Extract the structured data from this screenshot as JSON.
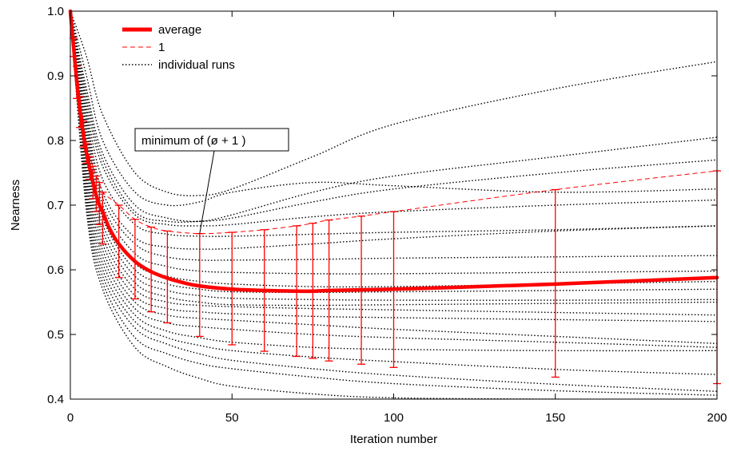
{
  "chart_data": {
    "type": "line",
    "xlabel": "Iteration number",
    "ylabel": "Nearness",
    "xlim": [
      0,
      200
    ],
    "ylim": [
      0.4,
      1.0
    ],
    "xticks": [
      0,
      50,
      100,
      150,
      200
    ],
    "yticks": [
      0.4,
      0.5,
      0.6,
      0.7,
      0.8,
      0.9,
      1.0
    ],
    "xtick_labels": [
      "0",
      "50",
      "100",
      "150",
      "200"
    ],
    "ytick_labels": [
      "0.4",
      "0.5",
      "0.6",
      "0.7",
      "0.8",
      "0.9",
      "1.0"
    ],
    "grid": false,
    "legend_position": "top-left",
    "legend": [
      {
        "label": "average",
        "style": "thick-solid",
        "color": "#ff0000"
      },
      {
        "label": "1",
        "style": "dashed",
        "color": "#ff0000"
      },
      {
        "label": "individual runs",
        "style": "dotted",
        "color": "#000000"
      }
    ],
    "annotation": {
      "text": "minimum of (ø + 1  )",
      "points_to": {
        "x": 40,
        "y": 0.656
      }
    },
    "average": {
      "color": "#ff0000",
      "x": [
        0,
        1,
        2,
        3,
        4,
        5,
        6,
        7,
        8,
        9,
        10,
        12,
        15,
        20,
        25,
        30,
        35,
        40,
        50,
        60,
        70,
        75,
        80,
        90,
        100,
        120,
        150,
        200
      ],
      "y": [
        1.0,
        0.945,
        0.89,
        0.845,
        0.81,
        0.78,
        0.757,
        0.735,
        0.715,
        0.7,
        0.69,
        0.665,
        0.64,
        0.613,
        0.597,
        0.587,
        0.58,
        0.575,
        0.57,
        0.568,
        0.567,
        0.567,
        0.568,
        0.569,
        0.57,
        0.573,
        0.578,
        0.588
      ]
    },
    "upper_bound": {
      "color": "#ff0000",
      "x": [
        0,
        1,
        2,
        3,
        4,
        5,
        6,
        7,
        8,
        9,
        10,
        15,
        20,
        25,
        30,
        40,
        50,
        60,
        70,
        75,
        80,
        90,
        100,
        150,
        200
      ],
      "y": [
        1.0,
        0.958,
        0.915,
        0.868,
        0.83,
        0.795,
        0.775,
        0.76,
        0.745,
        0.735,
        0.72,
        0.7,
        0.678,
        0.666,
        0.66,
        0.656,
        0.658,
        0.662,
        0.668,
        0.672,
        0.677,
        0.683,
        0.69,
        0.724,
        0.753
      ]
    },
    "error_bars": {
      "color": "#ff0000",
      "x": [
        1,
        2,
        3,
        4,
        5,
        6,
        7,
        8,
        9,
        10,
        15,
        20,
        25,
        30,
        40,
        50,
        60,
        70,
        75,
        80,
        90,
        100,
        150,
        200
      ],
      "low": [
        0.93,
        0.865,
        0.82,
        0.79,
        0.765,
        0.74,
        0.71,
        0.69,
        0.67,
        0.64,
        0.588,
        0.555,
        0.535,
        0.518,
        0.497,
        0.484,
        0.474,
        0.466,
        0.463,
        0.459,
        0.454,
        0.449,
        0.434,
        0.424
      ],
      "high": [
        0.958,
        0.915,
        0.868,
        0.83,
        0.795,
        0.775,
        0.76,
        0.745,
        0.735,
        0.72,
        0.7,
        0.678,
        0.666,
        0.66,
        0.656,
        0.658,
        0.662,
        0.668,
        0.672,
        0.677,
        0.683,
        0.69,
        0.724,
        0.753
      ]
    },
    "individual_runs": {
      "color": "#000000",
      "x": [
        0,
        5,
        10,
        20,
        30,
        40,
        50,
        75,
        100,
        150,
        200
      ],
      "series": [
        {
          "y": [
            1.0,
            0.93,
            0.84,
            0.75,
            0.72,
            0.715,
            0.725,
            0.775,
            0.825,
            0.88,
            0.922
          ]
        },
        {
          "y": [
            1.0,
            0.9,
            0.8,
            0.72,
            0.7,
            0.705,
            0.72,
            0.735,
            0.73,
            0.72,
            0.725
          ]
        },
        {
          "y": [
            1.0,
            0.88,
            0.78,
            0.7,
            0.68,
            0.675,
            0.685,
            0.72,
            0.745,
            0.775,
            0.805
          ]
        },
        {
          "y": [
            1.0,
            0.87,
            0.77,
            0.69,
            0.675,
            0.675,
            0.68,
            0.705,
            0.725,
            0.75,
            0.77
          ]
        },
        {
          "y": [
            1.0,
            0.86,
            0.76,
            0.685,
            0.67,
            0.668,
            0.67,
            0.682,
            0.69,
            0.7,
            0.708
          ]
        },
        {
          "y": [
            1.0,
            0.85,
            0.74,
            0.67,
            0.655,
            0.652,
            0.652,
            0.655,
            0.658,
            0.662,
            0.668
          ]
        },
        {
          "y": [
            1.0,
            0.84,
            0.72,
            0.65,
            0.635,
            0.632,
            0.633,
            0.64,
            0.648,
            0.66,
            0.668
          ]
        },
        {
          "y": [
            1.0,
            0.83,
            0.71,
            0.64,
            0.62,
            0.615,
            0.615,
            0.616,
            0.618,
            0.62,
            0.622
          ]
        },
        {
          "y": [
            1.0,
            0.82,
            0.7,
            0.625,
            0.605,
            0.598,
            0.596,
            0.594,
            0.594,
            0.596,
            0.598
          ]
        },
        {
          "y": [
            1.0,
            0.81,
            0.69,
            0.61,
            0.59,
            0.582,
            0.578,
            0.574,
            0.574,
            0.578,
            0.582
          ]
        },
        {
          "y": [
            1.0,
            0.8,
            0.68,
            0.6,
            0.578,
            0.57,
            0.566,
            0.565,
            0.566,
            0.568,
            0.57
          ]
        },
        {
          "y": [
            1.0,
            0.79,
            0.67,
            0.59,
            0.568,
            0.56,
            0.556,
            0.554,
            0.553,
            0.553,
            0.554
          ]
        },
        {
          "y": [
            1.0,
            0.78,
            0.66,
            0.58,
            0.558,
            0.55,
            0.546,
            0.545,
            0.546,
            0.548,
            0.55
          ]
        },
        {
          "y": [
            1.0,
            0.77,
            0.65,
            0.57,
            0.55,
            0.545,
            0.543,
            0.54,
            0.538,
            0.534,
            0.53
          ]
        },
        {
          "y": [
            1.0,
            0.76,
            0.64,
            0.56,
            0.54,
            0.535,
            0.532,
            0.528,
            0.526,
            0.523,
            0.52
          ]
        },
        {
          "y": [
            1.0,
            0.75,
            0.63,
            0.55,
            0.53,
            0.525,
            0.522,
            0.515,
            0.508,
            0.497,
            0.486
          ]
        },
        {
          "y": [
            1.0,
            0.74,
            0.62,
            0.54,
            0.518,
            0.512,
            0.508,
            0.5,
            0.495,
            0.488,
            0.48
          ]
        },
        {
          "y": [
            1.0,
            0.73,
            0.61,
            0.53,
            0.505,
            0.495,
            0.488,
            0.48,
            0.477,
            0.475,
            0.475
          ]
        },
        {
          "y": [
            1.0,
            0.72,
            0.6,
            0.52,
            0.495,
            0.483,
            0.475,
            0.465,
            0.458,
            0.446,
            0.438
          ]
        },
        {
          "y": [
            1.0,
            0.71,
            0.59,
            0.51,
            0.485,
            0.47,
            0.46,
            0.447,
            0.437,
            0.423,
            0.412
          ]
        },
        {
          "y": [
            1.0,
            0.7,
            0.58,
            0.495,
            0.47,
            0.455,
            0.447,
            0.434,
            0.424,
            0.413,
            0.406
          ]
        },
        {
          "y": [
            1.0,
            0.69,
            0.57,
            0.48,
            0.45,
            0.432,
            0.42,
            0.408,
            0.402,
            0.4,
            0.4
          ]
        }
      ]
    }
  }
}
